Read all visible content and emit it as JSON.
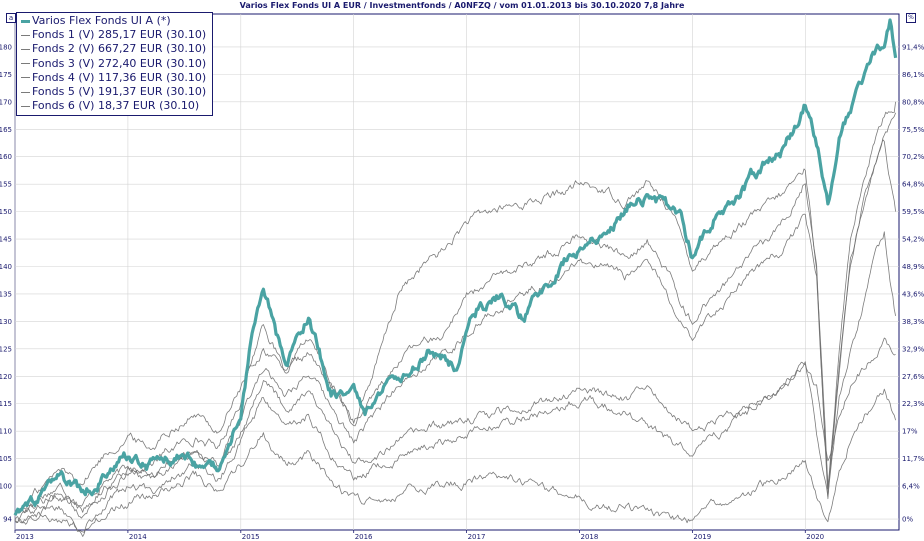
{
  "title": "Varios Flex Fonds UI A EUR / Investmentfonds / A0NFZQ / vom 01.01.2013 bis 30.10.2020 7,8 Jahre",
  "corner_left_label": "a",
  "corner_right_label": "%",
  "colors": {
    "main": "#4aa3a3",
    "funds": "#6e6e6e",
    "axis": "#1a1a6e",
    "grid": "#d4d4d4"
  },
  "legend": [
    {
      "label": "Varios Flex Fonds UI A (*)",
      "series": "main"
    },
    {
      "label": "Fonds 1 (V) 285,17 EUR (30.10)",
      "series": "f1"
    },
    {
      "label": "Fonds 2 (V) 667,27 EUR (30.10)",
      "series": "f2"
    },
    {
      "label": "Fonds 3 (V) 272,40 EUR (30.10)",
      "series": "f3"
    },
    {
      "label": "Fonds 4 (V) 117,36 EUR (30.10)",
      "series": "f4"
    },
    {
      "label": "Fonds 5 (V) 191,37 EUR (30.10)",
      "series": "f5"
    },
    {
      "label": "Fonds 6 (V) 18,37 EUR (30.10)",
      "series": "f6"
    }
  ],
  "chart_data": {
    "type": "line",
    "xlim": [
      2013.0,
      2020.83
    ],
    "ylim": [
      92,
      186
    ],
    "x_ticks": [
      "2013",
      "2014",
      "2015",
      "2016",
      "2017",
      "2018",
      "2019",
      "2020"
    ],
    "left_ticks": [
      "94",
      "100",
      "105",
      "110",
      "115",
      "120",
      "125",
      "130",
      "135",
      "140",
      "145",
      "150",
      "155",
      "160",
      "165",
      "170",
      "175",
      "180"
    ],
    "right_ticks": [
      "0%",
      "6,4%",
      "11,7%",
      "17%",
      "22,3%",
      "27,6%",
      "32,9%",
      "38,3%",
      "43,6%",
      "48,9%",
      "54,2%",
      "59,5%",
      "64,8%",
      "70,2%",
      "75,5%",
      "80,8%",
      "86,1%",
      "91,4%"
    ],
    "grid": true,
    "legend_position": "top-left",
    "series": [
      {
        "id": "main",
        "name": "Varios Flex Fonds UI A (*)",
        "width": 3.2,
        "x": [
          2013.0,
          2013.2,
          2013.4,
          2013.6,
          2013.8,
          2014.0,
          2014.2,
          2014.4,
          2014.6,
          2014.8,
          2015.0,
          2015.1,
          2015.2,
          2015.3,
          2015.4,
          2015.5,
          2015.6,
          2015.8,
          2016.0,
          2016.1,
          2016.3,
          2016.5,
          2016.7,
          2016.9,
          2017.1,
          2017.3,
          2017.5,
          2017.7,
          2017.9,
          2018.1,
          2018.3,
          2018.5,
          2018.7,
          2018.9,
          2019.0,
          2019.2,
          2019.4,
          2019.6,
          2019.8,
          2020.0,
          2020.1,
          2020.2,
          2020.3,
          2020.4,
          2020.5,
          2020.6,
          2020.7,
          2020.75,
          2020.8
        ],
        "y": [
          95,
          97,
          101,
          99,
          102,
          105,
          104,
          106,
          104,
          103,
          114,
          128,
          135,
          129,
          121,
          128,
          131,
          117,
          117,
          112,
          118,
          121,
          125,
          122,
          132,
          135,
          130,
          137,
          142,
          144,
          148,
          153,
          152,
          149,
          142,
          150,
          153,
          158,
          161,
          170,
          163,
          152,
          163,
          168,
          173,
          178,
          181,
          185,
          178
        ]
      },
      {
        "id": "f1",
        "name": "Fonds 1 (V) 285,17 EUR (30.10)",
        "width": 0.8,
        "x": [
          2013.0,
          2013.2,
          2013.4,
          2013.6,
          2013.8,
          2014.0,
          2014.2,
          2014.4,
          2014.6,
          2014.8,
          2015.0,
          2015.2,
          2015.4,
          2015.6,
          2015.8,
          2016.0,
          2016.2,
          2016.4,
          2016.6,
          2016.8,
          2017.0,
          2017.2,
          2017.4,
          2017.6,
          2017.8,
          2018.0,
          2018.2,
          2018.4,
          2018.6,
          2018.8,
          2019.0,
          2019.2,
          2019.4,
          2019.6,
          2019.8,
          2020.0,
          2020.1,
          2020.2,
          2020.3,
          2020.4,
          2020.5,
          2020.6,
          2020.7,
          2020.8
        ],
        "y": [
          95,
          98,
          100,
          97,
          101,
          103,
          104,
          107,
          109,
          107,
          116,
          130,
          120,
          124,
          118,
          112,
          122,
          135,
          140,
          143,
          148,
          150,
          151,
          152,
          153,
          155,
          154,
          152,
          155,
          151,
          140,
          144,
          147,
          150,
          153,
          158,
          140,
          100,
          120,
          140,
          150,
          158,
          165,
          168
        ]
      },
      {
        "id": "f2",
        "name": "Fonds 2 (V) 667,27 EUR (30.10)",
        "width": 0.8,
        "x": [
          2013.0,
          2013.2,
          2013.4,
          2013.6,
          2013.8,
          2014.0,
          2014.2,
          2014.4,
          2014.6,
          2014.8,
          2015.0,
          2015.2,
          2015.4,
          2015.6,
          2015.8,
          2016.0,
          2016.2,
          2016.4,
          2016.6,
          2016.8,
          2017.0,
          2017.2,
          2017.4,
          2017.6,
          2017.8,
          2018.0,
          2018.2,
          2018.4,
          2018.6,
          2018.8,
          2019.0,
          2019.2,
          2019.4,
          2019.6,
          2019.8,
          2020.0,
          2020.1,
          2020.2,
          2020.3,
          2020.4,
          2020.5,
          2020.6,
          2020.7,
          2020.8
        ],
        "y": [
          95,
          99,
          103,
          101,
          106,
          109,
          107,
          111,
          113,
          110,
          118,
          125,
          121,
          127,
          119,
          111,
          117,
          123,
          126,
          128,
          135,
          137,
          139,
          141,
          143,
          146,
          144,
          142,
          145,
          138,
          130,
          135,
          139,
          143,
          148,
          156,
          140,
          97,
          125,
          145,
          155,
          162,
          168,
          170
        ]
      },
      {
        "id": "f3",
        "name": "Fonds 3 (V) 272,40 EUR (30.10)",
        "width": 0.8,
        "x": [
          2013.0,
          2013.2,
          2013.4,
          2013.6,
          2013.8,
          2014.0,
          2014.2,
          2014.4,
          2014.6,
          2014.8,
          2015.0,
          2015.2,
          2015.4,
          2015.6,
          2015.8,
          2016.0,
          2016.2,
          2016.4,
          2016.6,
          2016.8,
          2017.0,
          2017.2,
          2017.4,
          2017.6,
          2017.8,
          2018.0,
          2018.2,
          2018.4,
          2018.6,
          2018.8,
          2019.0,
          2019.2,
          2019.4,
          2019.6,
          2019.8,
          2020.0,
          2020.1,
          2020.2,
          2020.3,
          2020.4,
          2020.5,
          2020.6,
          2020.7,
          2020.8
        ],
        "y": [
          95,
          97,
          99,
          96,
          100,
          103,
          102,
          105,
          107,
          104,
          112,
          122,
          117,
          121,
          114,
          108,
          113,
          119,
          122,
          124,
          128,
          131,
          134,
          136,
          138,
          141,
          140,
          138,
          141,
          134,
          127,
          132,
          136,
          140,
          143,
          149,
          138,
          100,
          122,
          140,
          150,
          157,
          162,
          150
        ]
      },
      {
        "id": "f4",
        "name": "Fonds 4 (V) 117,36 EUR (30.10)",
        "width": 0.8,
        "x": [
          2013.0,
          2013.2,
          2013.4,
          2013.6,
          2013.8,
          2014.0,
          2014.2,
          2014.4,
          2014.6,
          2014.8,
          2015.0,
          2015.2,
          2015.4,
          2015.6,
          2015.8,
          2016.0,
          2016.2,
          2016.4,
          2016.6,
          2016.8,
          2017.0,
          2017.2,
          2017.4,
          2017.6,
          2017.8,
          2018.0,
          2018.2,
          2018.4,
          2018.6,
          2018.8,
          2019.0,
          2019.2,
          2019.4,
          2019.6,
          2019.8,
          2020.0,
          2020.1,
          2020.2,
          2020.3,
          2020.4,
          2020.5,
          2020.6,
          2020.7,
          2020.8
        ],
        "y": [
          94,
          96,
          98,
          95,
          99,
          102,
          101,
          104,
          106,
          103,
          110,
          120,
          114,
          118,
          110,
          104,
          106,
          108,
          110,
          111,
          112,
          113,
          114,
          115,
          116,
          118,
          117,
          116,
          117,
          114,
          110,
          112,
          114,
          116,
          118,
          122,
          118,
          104,
          112,
          118,
          121,
          124,
          126,
          124
        ]
      },
      {
        "id": "f5",
        "name": "Fonds 5 (V) 191,37 EUR (30.10)",
        "width": 0.8,
        "x": [
          2013.0,
          2013.2,
          2013.4,
          2013.6,
          2013.8,
          2014.0,
          2014.2,
          2014.4,
          2014.6,
          2014.8,
          2015.0,
          2015.2,
          2015.4,
          2015.6,
          2015.8,
          2016.0,
          2016.2,
          2016.4,
          2016.6,
          2016.8,
          2017.0,
          2017.2,
          2017.4,
          2017.6,
          2017.8,
          2018.0,
          2018.2,
          2018.4,
          2018.6,
          2018.8,
          2019.0,
          2019.2,
          2019.4,
          2019.6,
          2019.8,
          2020.0,
          2020.1,
          2020.2,
          2020.3,
          2020.4,
          2020.5,
          2020.6,
          2020.7,
          2020.8
        ],
        "y": [
          94,
          95,
          96,
          93,
          97,
          100,
          99,
          102,
          104,
          101,
          108,
          116,
          110,
          113,
          106,
          101,
          103,
          105,
          107,
          108,
          110,
          111,
          112,
          113,
          114,
          116,
          115,
          113,
          112,
          108,
          106,
          109,
          112,
          115,
          118,
          123,
          110,
          98,
          115,
          125,
          132,
          140,
          146,
          131
        ]
      },
      {
        "id": "f6",
        "name": "Fonds 6 (V) 18,37 EUR (30.10)",
        "width": 0.8,
        "x": [
          2013.0,
          2013.2,
          2013.4,
          2013.6,
          2013.8,
          2014.0,
          2014.2,
          2014.4,
          2014.6,
          2014.8,
          2015.0,
          2015.2,
          2015.4,
          2015.6,
          2015.8,
          2016.0,
          2016.2,
          2016.4,
          2016.6,
          2016.8,
          2017.0,
          2017.2,
          2017.4,
          2017.6,
          2017.8,
          2018.0,
          2018.2,
          2018.4,
          2018.6,
          2018.8,
          2019.0,
          2019.2,
          2019.4,
          2019.6,
          2019.8,
          2020.0,
          2020.1,
          2020.2,
          2020.3,
          2020.4,
          2020.5,
          2020.6,
          2020.7,
          2020.8
        ],
        "y": [
          94,
          95,
          94,
          92,
          95,
          97,
          98,
          100,
          102,
          99,
          104,
          110,
          104,
          106,
          101,
          97,
          98,
          99,
          100,
          100,
          101,
          102,
          101,
          100,
          99,
          98,
          97,
          96,
          95,
          94,
          94,
          96,
          98,
          100,
          102,
          104,
          98,
          93,
          103,
          109,
          112,
          115,
          118,
          112
        ]
      }
    ]
  }
}
